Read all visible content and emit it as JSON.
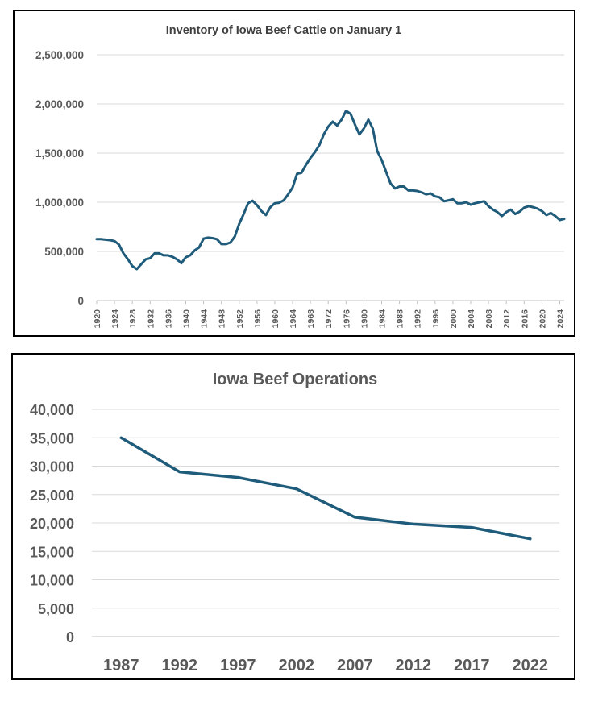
{
  "chart_data": [
    {
      "type": "line",
      "title": "Inventory of Iowa Beef Cattle on January 1",
      "xlabel": "",
      "ylabel": "",
      "ylim": [
        0,
        2500000
      ],
      "y_ticks": [
        "0",
        "500,000",
        "1,000,000",
        "1,500,000",
        "2,000,000",
        "2,500,000"
      ],
      "x_tick_labels": [
        "1920",
        "1924",
        "1928",
        "1932",
        "1936",
        "1940",
        "1944",
        "1948",
        "1952",
        "1956",
        "1960",
        "1964",
        "1968",
        "1972",
        "1976",
        "1980",
        "1984",
        "1988",
        "1992",
        "1996",
        "2000",
        "2004",
        "2008",
        "2012",
        "2016",
        "2020",
        "2024"
      ],
      "grid": true,
      "color": "#1f5b7a",
      "x": [
        1920,
        1921,
        1922,
        1923,
        1924,
        1925,
        1926,
        1927,
        1928,
        1929,
        1930,
        1931,
        1932,
        1933,
        1934,
        1935,
        1936,
        1937,
        1938,
        1939,
        1940,
        1941,
        1942,
        1943,
        1944,
        1945,
        1946,
        1947,
        1948,
        1949,
        1950,
        1951,
        1952,
        1953,
        1954,
        1955,
        1956,
        1957,
        1958,
        1959,
        1960,
        1961,
        1962,
        1963,
        1964,
        1965,
        1966,
        1967,
        1968,
        1969,
        1970,
        1971,
        1972,
        1973,
        1974,
        1975,
        1976,
        1977,
        1978,
        1979,
        1980,
        1981,
        1982,
        1983,
        1984,
        1985,
        1986,
        1987,
        1988,
        1989,
        1990,
        1991,
        1992,
        1993,
        1994,
        1995,
        1996,
        1997,
        1998,
        1999,
        2000,
        2001,
        2002,
        2003,
        2004,
        2005,
        2006,
        2007,
        2008,
        2009,
        2010,
        2011,
        2012,
        2013,
        2014,
        2015,
        2016,
        2017,
        2018,
        2019,
        2020,
        2021,
        2022,
        2023,
        2024,
        2025
      ],
      "values": [
        625000,
        625000,
        620000,
        615000,
        605000,
        570000,
        480000,
        420000,
        350000,
        320000,
        370000,
        420000,
        430000,
        480000,
        480000,
        460000,
        460000,
        445000,
        420000,
        380000,
        440000,
        460000,
        510000,
        540000,
        630000,
        640000,
        635000,
        625000,
        575000,
        575000,
        590000,
        650000,
        780000,
        880000,
        990000,
        1015000,
        970000,
        910000,
        870000,
        950000,
        990000,
        995000,
        1020000,
        1080000,
        1150000,
        1290000,
        1300000,
        1380000,
        1450000,
        1510000,
        1580000,
        1690000,
        1770000,
        1820000,
        1780000,
        1840000,
        1930000,
        1900000,
        1790000,
        1690000,
        1750000,
        1840000,
        1750000,
        1520000,
        1430000,
        1310000,
        1190000,
        1140000,
        1160000,
        1160000,
        1120000,
        1120000,
        1115000,
        1100000,
        1080000,
        1090000,
        1060000,
        1050000,
        1010000,
        1020000,
        1030000,
        990000,
        990000,
        1000000,
        975000,
        990000,
        1000000,
        1010000,
        960000,
        925000,
        900000,
        860000,
        900000,
        925000,
        880000,
        905000,
        945000,
        960000,
        950000,
        935000,
        910000,
        870000,
        890000,
        860000,
        820000,
        830000
      ]
    },
    {
      "type": "line",
      "title": "Iowa Beef Operations",
      "xlabel": "",
      "ylabel": "",
      "ylim": [
        0,
        40000
      ],
      "y_ticks": [
        "0",
        "5,000",
        "10,000",
        "15,000",
        "20,000",
        "25,000",
        "30,000",
        "35,000",
        "40,000"
      ],
      "categories": [
        "1987",
        "1992",
        "1997",
        "2002",
        "2007",
        "2012",
        "2017",
        "2022"
      ],
      "values": [
        35000,
        29000,
        28000,
        26000,
        21000,
        19800,
        19200,
        17200
      ],
      "grid": true,
      "color": "#1f5b7a"
    }
  ]
}
